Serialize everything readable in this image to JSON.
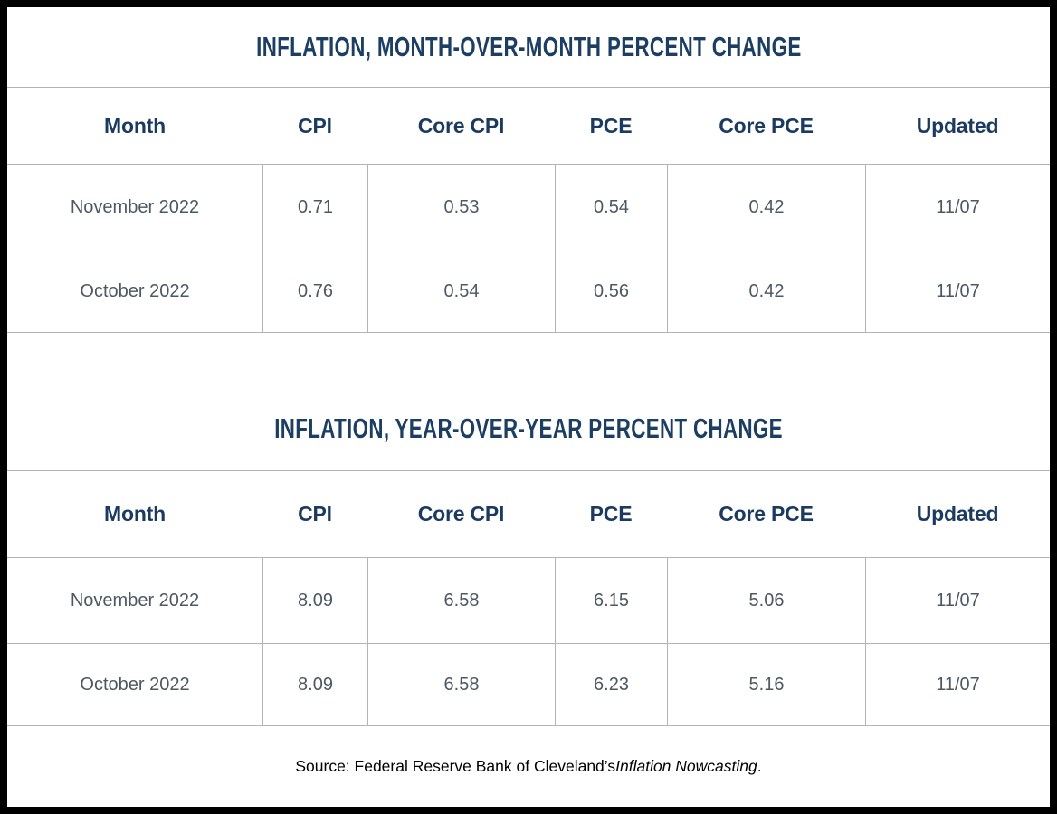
{
  "colors": {
    "title_navy": "#1c3e63",
    "header_navy": "#1b3a5f",
    "cell_text": "#4e5862",
    "grid_line": "#b4b4b4",
    "outer_border": "#000000"
  },
  "tables": [
    {
      "title": "INFLATION, MONTH-OVER-MONTH PERCENT CHANGE",
      "columns": [
        "Month",
        "CPI",
        "Core CPI",
        "PCE",
        "Core PCE",
        "Updated"
      ],
      "rows": [
        [
          "November 2022",
          "0.71",
          "0.53",
          "0.54",
          "0.42",
          "11/07"
        ],
        [
          "October 2022",
          "0.76",
          "0.54",
          "0.56",
          "0.42",
          "11/07"
        ]
      ]
    },
    {
      "title": "INFLATION, YEAR-OVER-YEAR PERCENT CHANGE",
      "columns": [
        "Month",
        "CPI",
        "Core CPI",
        "PCE",
        "Core PCE",
        "Updated"
      ],
      "rows": [
        [
          "November 2022",
          "8.09",
          "6.58",
          "6.15",
          "5.06",
          "11/07"
        ],
        [
          "October 2022",
          "8.09",
          "6.58",
          "6.23",
          "5.16",
          "11/07"
        ]
      ]
    }
  ],
  "footer": {
    "source_prefix": "Source: Federal Reserve Bank of Cleveland’s ",
    "source_title": "Inflation Nowcasting",
    "source_suffix": "."
  }
}
